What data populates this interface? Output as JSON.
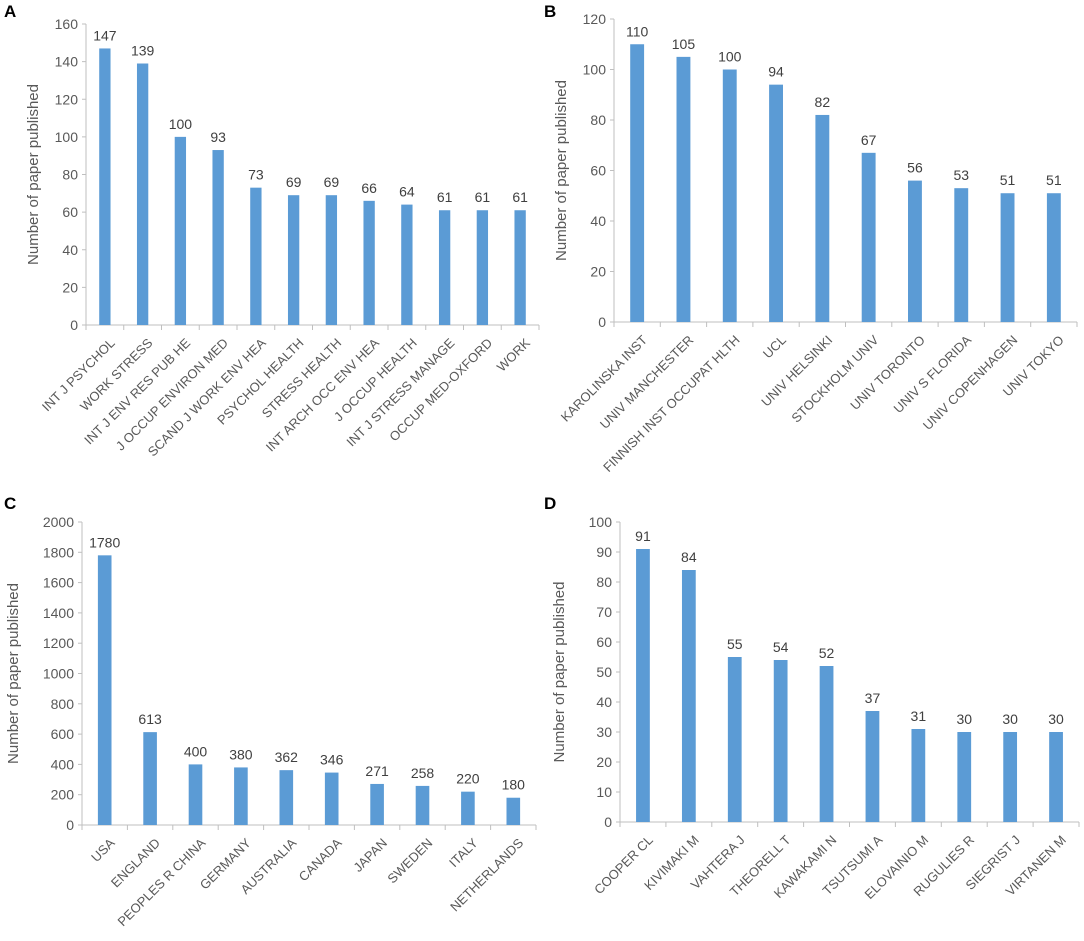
{
  "chart_data": [
    {
      "panel": "A",
      "type": "bar",
      "ylabel": "Number of paper published",
      "ylim": [
        0,
        160
      ],
      "yticks": [
        0,
        20,
        40,
        60,
        80,
        100,
        120,
        140,
        160
      ],
      "categories": [
        "INT J PSYCHOL",
        "WORK STRESS",
        "INT J ENV RES PUB HE",
        "J OCCUP ENVIRON MED",
        "SCAND J WORK ENV HEA",
        "PSYCHOL HEALTH",
        "STRESS HEALTH",
        "INT ARCH OCC ENV HEA",
        "J OCCUP HEALTH",
        "INT J STRESS MANAGE",
        "OCCUP MED-OXFORD",
        "WORK"
      ],
      "values": [
        147,
        139,
        100,
        93,
        73,
        69,
        69,
        66,
        64,
        61,
        61,
        61
      ],
      "color": "#5b9bd5",
      "grid": false
    },
    {
      "panel": "B",
      "type": "bar",
      "ylabel": "Number of paper published",
      "ylim": [
        0,
        120
      ],
      "yticks": [
        0,
        20,
        40,
        60,
        80,
        100,
        120
      ],
      "categories": [
        "KAROLINSKA INST",
        "UNIV MANCHESTER",
        "FINNISH INST OCCUPAT HLTH",
        "UCL",
        "UNIV HELSINKI",
        "STOCKHOLM UNIV",
        "UNIV TORONTO",
        "UNIV S FLORIDA",
        "UNIV COPENHAGEN",
        "UNIV TOKYO"
      ],
      "values": [
        110,
        105,
        100,
        94,
        82,
        67,
        56,
        53,
        51,
        51
      ],
      "color": "#5b9bd5",
      "grid": false
    },
    {
      "panel": "C",
      "type": "bar",
      "ylabel": "Number of paper published",
      "ylim": [
        0,
        2000
      ],
      "yticks": [
        0,
        200,
        400,
        600,
        800,
        1000,
        1200,
        1400,
        1600,
        1800,
        2000
      ],
      "categories": [
        "USA",
        "ENGLAND",
        "PEOPLES R CHINA",
        "GERMANY",
        "AUSTRALIA",
        "CANADA",
        "JAPAN",
        "SWEDEN",
        "ITALY",
        "NETHERLANDS"
      ],
      "values": [
        1780,
        613,
        400,
        380,
        362,
        346,
        271,
        258,
        220,
        180
      ],
      "color": "#5b9bd5",
      "grid": false
    },
    {
      "panel": "D",
      "type": "bar",
      "ylabel": "Number of paper published",
      "ylim": [
        0,
        100
      ],
      "yticks": [
        0,
        10,
        20,
        30,
        40,
        50,
        60,
        70,
        80,
        90,
        100
      ],
      "categories": [
        "COOPER CL",
        "KIVIMAKI M",
        "VAHTERA J",
        "THEORELL T",
        "KAWAKAMI N",
        "TSUTSUMI A",
        "ELOVAINIO M",
        "RUGULIES R",
        "SIEGRIST J",
        "VIRTANEN M"
      ],
      "values": [
        91,
        84,
        55,
        54,
        52,
        37,
        31,
        30,
        30,
        30
      ],
      "color": "#5b9bd5",
      "grid": false
    }
  ]
}
